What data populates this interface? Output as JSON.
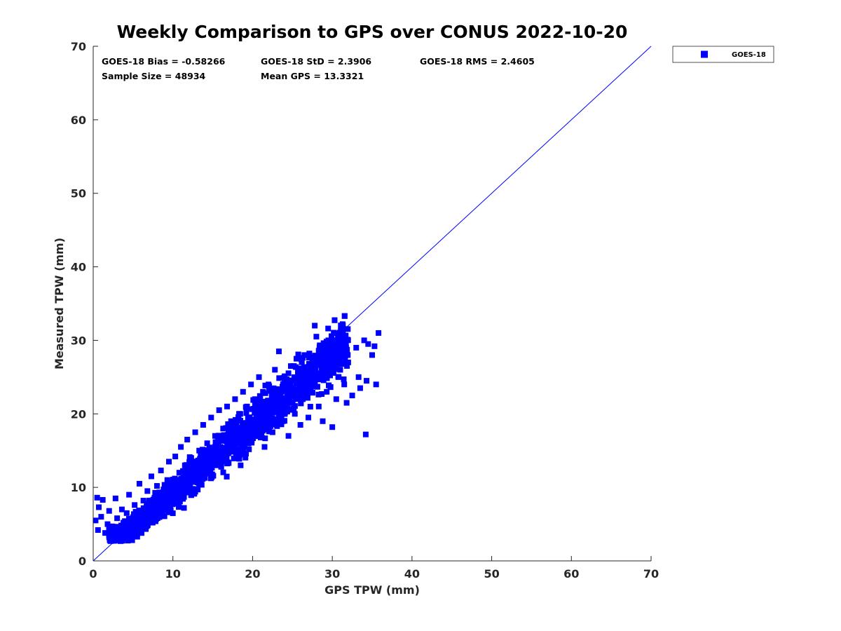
{
  "chart_data": {
    "type": "scatter",
    "title": "Weekly Comparison to GPS over CONUS 2022-10-20",
    "xlabel": "GPS TPW (mm)",
    "ylabel": "Measured TPW (mm)",
    "xlim": [
      0,
      70
    ],
    "ylim": [
      0,
      70
    ],
    "xticks": [
      "0",
      "10",
      "20",
      "30",
      "40",
      "50",
      "60",
      "70"
    ],
    "yticks": [
      "0",
      "10",
      "20",
      "30",
      "40",
      "50",
      "60",
      "70"
    ],
    "grid": false,
    "legend_position": "outside-top-right",
    "series": [
      {
        "name": "GOES-18",
        "color": "#0000ff",
        "marker": "square",
        "points": [
          [
            0.3,
            5.5
          ],
          [
            0.5,
            8.6
          ],
          [
            0.6,
            4.2
          ],
          [
            0.7,
            7.3
          ],
          [
            1.0,
            6.0
          ],
          [
            1.2,
            8.3
          ],
          [
            1.5,
            3.8
          ],
          [
            1.8,
            5.0
          ],
          [
            2.0,
            6.8
          ],
          [
            2.3,
            4.5
          ],
          [
            2.5,
            3.5
          ],
          [
            2.8,
            8.5
          ],
          [
            3.0,
            5.8
          ],
          [
            3.2,
            4.0
          ],
          [
            3.4,
            2.9
          ],
          [
            3.6,
            7.0
          ],
          [
            3.8,
            5.2
          ],
          [
            4.0,
            3.3
          ],
          [
            4.2,
            6.5
          ],
          [
            4.5,
            9.0
          ],
          [
            4.7,
            4.6
          ],
          [
            5.0,
            3.6
          ],
          [
            5.2,
            7.6
          ],
          [
            5.5,
            5.5
          ],
          [
            5.8,
            10.5
          ],
          [
            6.0,
            6.2
          ],
          [
            6.3,
            8.2
          ],
          [
            6.5,
            4.8
          ],
          [
            6.8,
            9.5
          ],
          [
            7.0,
            6.8
          ],
          [
            7.3,
            11.5
          ],
          [
            7.5,
            8.0
          ],
          [
            7.8,
            5.6
          ],
          [
            8.0,
            10.2
          ],
          [
            8.3,
            7.4
          ],
          [
            8.5,
            12.3
          ],
          [
            8.8,
            9.0
          ],
          [
            9.0,
            6.9
          ],
          [
            9.3,
            11.0
          ],
          [
            9.5,
            13.5
          ],
          [
            9.8,
            8.5
          ],
          [
            10.0,
            10.5
          ],
          [
            10.3,
            14.2
          ],
          [
            10.5,
            9.4
          ],
          [
            10.8,
            12.0
          ],
          [
            11.0,
            15.5
          ],
          [
            11.3,
            10.0
          ],
          [
            11.5,
            13.0
          ],
          [
            11.8,
            16.5
          ],
          [
            12.0,
            11.2
          ],
          [
            12.3,
            14.0
          ],
          [
            12.5,
            9.8
          ],
          [
            12.8,
            17.5
          ],
          [
            13.0,
            12.5
          ],
          [
            13.3,
            15.0
          ],
          [
            13.5,
            11.0
          ],
          [
            13.8,
            18.5
          ],
          [
            14.0,
            13.5
          ],
          [
            14.3,
            16.0
          ],
          [
            14.5,
            12.0
          ],
          [
            14.8,
            19.5
          ],
          [
            15.0,
            14.5
          ],
          [
            15.3,
            17.0
          ],
          [
            15.5,
            13.0
          ],
          [
            15.8,
            20.5
          ],
          [
            16.0,
            15.5
          ],
          [
            16.3,
            18.0
          ],
          [
            16.5,
            14.0
          ],
          [
            16.8,
            21.0
          ],
          [
            17.0,
            16.5
          ],
          [
            17.3,
            19.0
          ],
          [
            17.5,
            15.0
          ],
          [
            17.8,
            22.0
          ],
          [
            18.0,
            17.5
          ],
          [
            18.3,
            20.0
          ],
          [
            18.5,
            13.0
          ],
          [
            18.8,
            23.0
          ],
          [
            19.0,
            18.0
          ],
          [
            19.3,
            21.0
          ],
          [
            19.5,
            16.0
          ],
          [
            19.8,
            24.0
          ],
          [
            20.0,
            19.0
          ],
          [
            20.3,
            22.0
          ],
          [
            20.5,
            17.0
          ],
          [
            20.8,
            25.0
          ],
          [
            21.0,
            20.0
          ],
          [
            21.3,
            23.0
          ],
          [
            21.5,
            15.5
          ],
          [
            21.8,
            19.0
          ],
          [
            22.0,
            24.0
          ],
          [
            22.3,
            21.0
          ],
          [
            22.5,
            17.5
          ],
          [
            22.8,
            26.0
          ],
          [
            23.0,
            20.5
          ],
          [
            23.3,
            28.5
          ],
          [
            23.5,
            22.5
          ],
          [
            23.8,
            19.0
          ],
          [
            24.0,
            25.0
          ],
          [
            24.3,
            21.5
          ],
          [
            24.5,
            17.0
          ],
          [
            24.8,
            26.5
          ],
          [
            25.0,
            23.0
          ],
          [
            25.3,
            20.0
          ],
          [
            25.5,
            27.5
          ],
          [
            25.8,
            24.0
          ],
          [
            26.0,
            18.5
          ],
          [
            26.3,
            22.0
          ],
          [
            26.5,
            28.0
          ],
          [
            26.8,
            25.0
          ],
          [
            27.0,
            19.5
          ],
          [
            27.3,
            23.5
          ],
          [
            27.5,
            27.0
          ],
          [
            27.8,
            32.0
          ],
          [
            28.0,
            30.5
          ],
          [
            28.3,
            21.0
          ],
          [
            28.5,
            25.5
          ],
          [
            28.8,
            19.0
          ],
          [
            29.0,
            27.5
          ],
          [
            29.3,
            23.0
          ],
          [
            29.5,
            30.0
          ],
          [
            29.8,
            26.0
          ],
          [
            30.0,
            18.2
          ],
          [
            30.3,
            28.5
          ],
          [
            30.5,
            22.0
          ],
          [
            30.8,
            25.0
          ],
          [
            31.0,
            30.0
          ],
          [
            31.3,
            32.2
          ],
          [
            31.5,
            24.0
          ],
          [
            31.8,
            21.5
          ],
          [
            32.0,
            27.0
          ],
          [
            32.5,
            22.5
          ],
          [
            33.0,
            29.0
          ],
          [
            33.3,
            25.0
          ],
          [
            33.5,
            23.5
          ],
          [
            34.0,
            30.0
          ],
          [
            34.2,
            17.2
          ],
          [
            34.3,
            24.5
          ],
          [
            34.5,
            29.5
          ],
          [
            35.0,
            28.0
          ],
          [
            35.3,
            29.2
          ],
          [
            35.5,
            24.0
          ],
          [
            35.8,
            31.0
          ]
        ]
      }
    ],
    "reference_line": {
      "from": [
        0,
        0
      ],
      "to": [
        70,
        70
      ],
      "color": "#0000ff"
    },
    "stats": {
      "bias": "GOES-18 Bias = -0.58266",
      "std": "GOES-18 StD = 2.3906",
      "rms": "GOES-18 RMS = 2.4605",
      "sample": "Sample Size = 48934",
      "mean": "Mean GPS = 13.3321"
    }
  }
}
